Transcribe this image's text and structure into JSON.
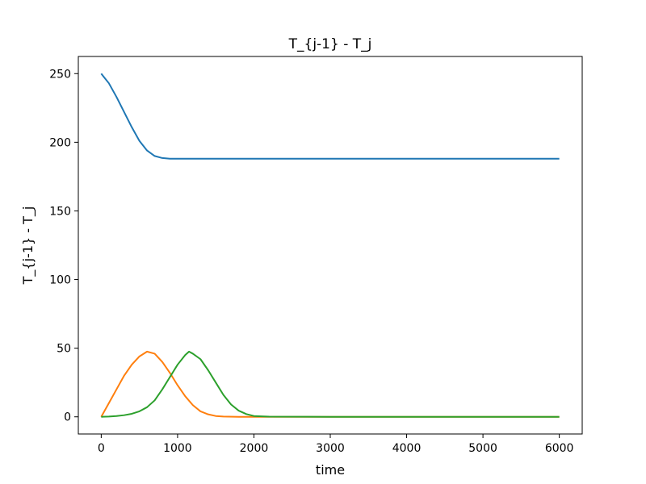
{
  "chart_data": {
    "type": "line",
    "title": "T_{j-1} - T_j",
    "xlabel": "time",
    "ylabel": "T_{j-1} - T_j",
    "xlim": [
      -300,
      6300
    ],
    "ylim": [
      -12.5,
      262.5
    ],
    "x_ticks": [
      0,
      1000,
      2000,
      3000,
      4000,
      5000,
      6000
    ],
    "y_ticks": [
      0,
      50,
      100,
      150,
      200,
      250
    ],
    "grid": false,
    "legend": "none",
    "series": [
      {
        "color": "#1f77b4",
        "x": [
          0,
          100,
          200,
          300,
          400,
          500,
          600,
          700,
          800,
          900,
          1000,
          1200,
          1500,
          2000,
          3000,
          4000,
          5000,
          6000
        ],
        "y": [
          250,
          243,
          233,
          222,
          211,
          201,
          194,
          190,
          188.5,
          188,
          188,
          188,
          188,
          188,
          188,
          188,
          188,
          188
        ]
      },
      {
        "color": "#ff7f0e",
        "x": [
          0,
          100,
          200,
          300,
          400,
          500,
          600,
          700,
          800,
          900,
          1000,
          1100,
          1200,
          1300,
          1400,
          1500,
          1600,
          1800,
          2000,
          3000,
          4000,
          5000,
          6000
        ],
        "y": [
          0,
          10,
          20,
          30,
          38,
          44,
          47.5,
          46,
          40,
          32,
          23,
          15,
          8.5,
          4,
          1.8,
          0.6,
          0.2,
          0,
          0,
          0,
          0,
          0,
          0
        ]
      },
      {
        "color": "#2ca02c",
        "x": [
          0,
          100,
          200,
          300,
          400,
          500,
          600,
          700,
          800,
          900,
          1000,
          1100,
          1150,
          1200,
          1300,
          1400,
          1500,
          1600,
          1700,
          1800,
          1900,
          2000,
          2200,
          3000,
          4000,
          5000,
          6000
        ],
        "y": [
          0,
          0.2,
          0.6,
          1.2,
          2.2,
          4,
          7,
          12,
          20,
          29,
          38,
          45,
          47.5,
          46,
          42,
          34,
          25,
          16,
          9,
          4.5,
          2,
          0.6,
          0.1,
          0,
          0,
          0,
          0
        ]
      }
    ]
  }
}
